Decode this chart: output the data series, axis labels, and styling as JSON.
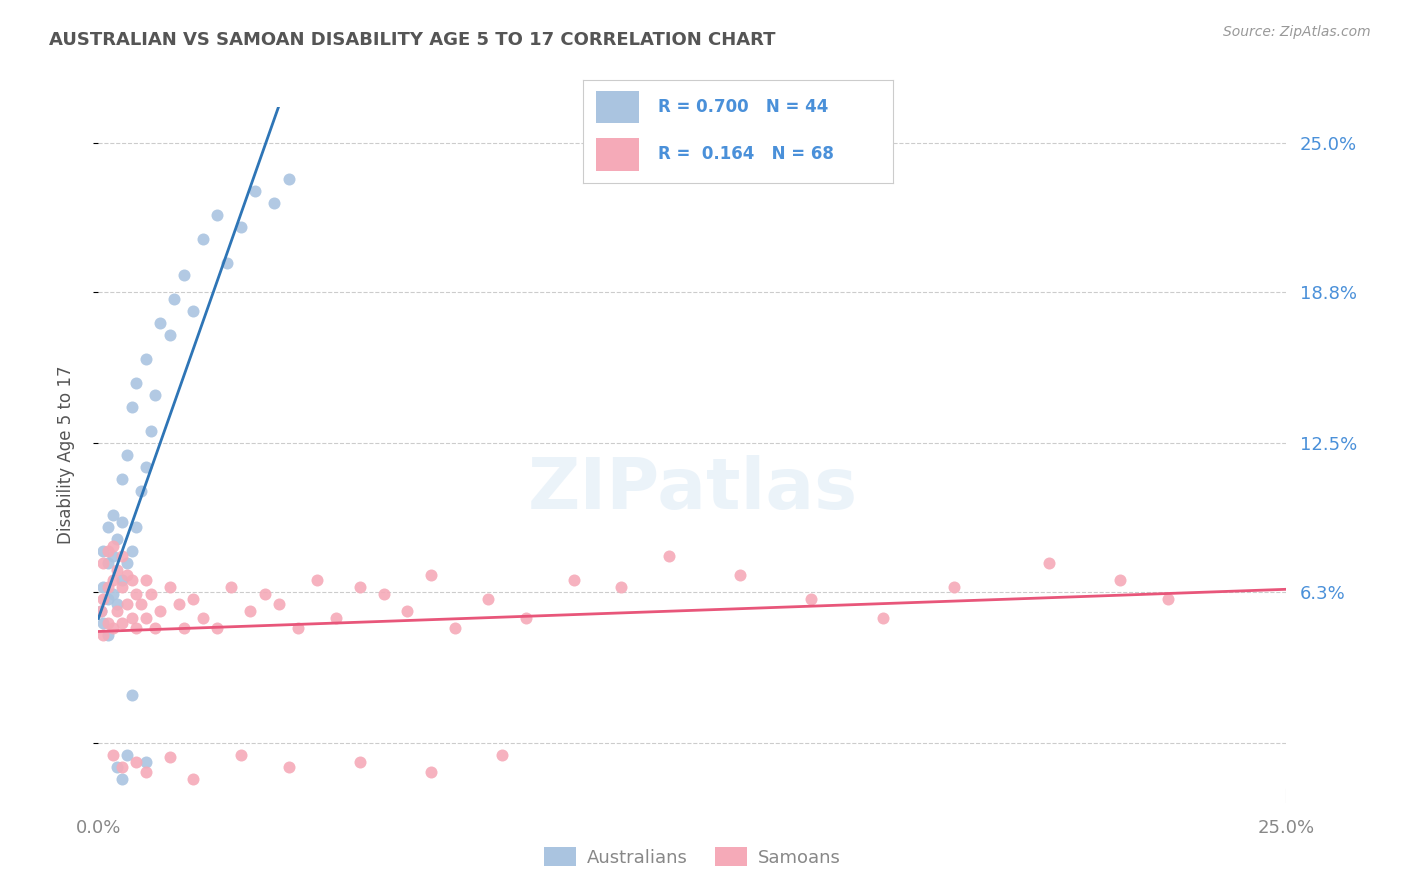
{
  "title": "AUSTRALIAN VS SAMOAN DISABILITY AGE 5 TO 17 CORRELATION CHART",
  "source": "Source: ZipAtlas.com",
  "ylabel": "Disability Age 5 to 17",
  "xlim": [
    0.0,
    0.25
  ],
  "ylim": [
    -0.025,
    0.265
  ],
  "yticks": [
    0.0,
    0.063,
    0.125,
    0.188,
    0.25
  ],
  "ytick_labels": [
    "",
    "6.3%",
    "12.5%",
    "18.8%",
    "25.0%"
  ],
  "xtick_labels": [
    "0.0%",
    "25.0%"
  ],
  "background_color": "#ffffff",
  "grid_color": "#cccccc",
  "australian_color": "#aac4e0",
  "samoan_color": "#f5aab8",
  "aus_line_color": "#2e75b6",
  "sam_line_color": "#e8567a",
  "dash_line_color": "#b0b8c8",
  "legend_text_color": "#4a90d9",
  "title_color": "#555555",
  "R_aus": 0.7,
  "N_aus": 44,
  "R_sam": 0.164,
  "N_sam": 68,
  "australians_x": [
    0.0005,
    0.001,
    0.001,
    0.001,
    0.002,
    0.002,
    0.002,
    0.002,
    0.003,
    0.003,
    0.003,
    0.004,
    0.004,
    0.005,
    0.005,
    0.005,
    0.006,
    0.006,
    0.007,
    0.007,
    0.008,
    0.008,
    0.009,
    0.01,
    0.01,
    0.011,
    0.012,
    0.013,
    0.015,
    0.016,
    0.018,
    0.02,
    0.022,
    0.025,
    0.027,
    0.03,
    0.033,
    0.037,
    0.04,
    0.004,
    0.005,
    0.006,
    0.007,
    0.01
  ],
  "australians_y": [
    0.055,
    0.05,
    0.065,
    0.08,
    0.045,
    0.06,
    0.075,
    0.09,
    0.062,
    0.078,
    0.095,
    0.058,
    0.085,
    0.068,
    0.092,
    0.11,
    0.075,
    0.12,
    0.08,
    0.14,
    0.09,
    0.15,
    0.105,
    0.115,
    0.16,
    0.13,
    0.145,
    0.175,
    0.17,
    0.185,
    0.195,
    0.18,
    0.21,
    0.22,
    0.2,
    0.215,
    0.23,
    0.225,
    0.235,
    -0.01,
    -0.015,
    -0.005,
    0.02,
    -0.008
  ],
  "samoans_x": [
    0.0005,
    0.001,
    0.001,
    0.001,
    0.002,
    0.002,
    0.002,
    0.003,
    0.003,
    0.003,
    0.004,
    0.004,
    0.005,
    0.005,
    0.005,
    0.006,
    0.006,
    0.007,
    0.007,
    0.008,
    0.008,
    0.009,
    0.01,
    0.01,
    0.011,
    0.012,
    0.013,
    0.015,
    0.017,
    0.018,
    0.02,
    0.022,
    0.025,
    0.028,
    0.032,
    0.035,
    0.038,
    0.042,
    0.046,
    0.05,
    0.055,
    0.06,
    0.065,
    0.07,
    0.075,
    0.082,
    0.09,
    0.1,
    0.11,
    0.12,
    0.135,
    0.15,
    0.165,
    0.18,
    0.2,
    0.215,
    0.225,
    0.003,
    0.005,
    0.008,
    0.01,
    0.015,
    0.02,
    0.03,
    0.04,
    0.055,
    0.07,
    0.085
  ],
  "samoans_y": [
    0.055,
    0.045,
    0.06,
    0.075,
    0.05,
    0.065,
    0.08,
    0.048,
    0.068,
    0.082,
    0.055,
    0.072,
    0.05,
    0.065,
    0.078,
    0.058,
    0.07,
    0.052,
    0.068,
    0.048,
    0.062,
    0.058,
    0.052,
    0.068,
    0.062,
    0.048,
    0.055,
    0.065,
    0.058,
    0.048,
    0.06,
    0.052,
    0.048,
    0.065,
    0.055,
    0.062,
    0.058,
    0.048,
    0.068,
    0.052,
    0.065,
    0.062,
    0.055,
    0.07,
    0.048,
    0.06,
    0.052,
    0.068,
    0.065,
    0.078,
    0.07,
    0.06,
    0.052,
    0.065,
    0.075,
    0.068,
    0.06,
    -0.005,
    -0.01,
    -0.008,
    -0.012,
    -0.006,
    -0.015,
    -0.005,
    -0.01,
    -0.008,
    -0.012,
    -0.005
  ]
}
